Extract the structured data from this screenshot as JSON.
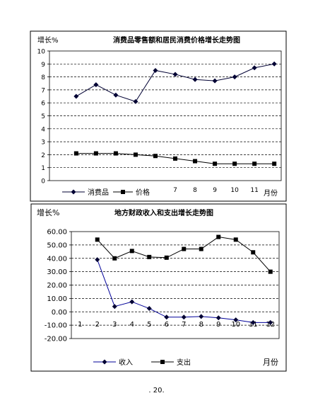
{
  "page_number": ". 20.",
  "chart_data": [
    {
      "type": "line",
      "title": "消费品零售额和居民消费价格增长走势图",
      "ylabel": "增长%",
      "xlabel": "月份",
      "ylim": [
        0,
        10
      ],
      "yticks": [
        0,
        1,
        2,
        3,
        4,
        5,
        6,
        7,
        8,
        9,
        10
      ],
      "x": [
        1,
        2,
        3,
        4,
        5,
        6,
        7,
        8,
        9,
        10,
        11,
        12
      ],
      "xtick_labels": [
        "",
        "",
        "",
        "",
        "",
        "",
        "7",
        "8",
        "9",
        "10",
        "11",
        ""
      ],
      "grid": "horizontal-dashed",
      "legend_position": "bottom",
      "series": [
        {
          "name": "消费品",
          "marker": "diamond",
          "values": [
            null,
            6.5,
            7.4,
            6.6,
            6.1,
            8.5,
            8.2,
            7.8,
            7.7,
            8.0,
            8.7,
            9.0
          ]
        },
        {
          "name": "价格",
          "marker": "square",
          "values": [
            null,
            2.1,
            2.1,
            2.1,
            2.0,
            1.9,
            1.7,
            1.5,
            1.3,
            1.3,
            1.3,
            1.3
          ]
        }
      ]
    },
    {
      "type": "line",
      "title": "地方财政收入和支出增长走势图",
      "ylabel": "增长%",
      "xlabel": "月份",
      "ylim": [
        -20,
        60
      ],
      "yticks": [
        -20,
        -10,
        0,
        10,
        20,
        30,
        40,
        50,
        60
      ],
      "ytick_labels": [
        "-20.00",
        "-10.00",
        "0.00",
        "10.00",
        "20.00",
        "30.00",
        "40.00",
        "50.00",
        "60.00"
      ],
      "x": [
        1,
        2,
        3,
        4,
        5,
        6,
        7,
        8,
        9,
        10,
        11,
        12
      ],
      "xtick_labels": [
        "1",
        "2",
        "3",
        "4",
        "5",
        "6",
        "7",
        "8",
        "9",
        "10",
        "11",
        "12"
      ],
      "grid": "horizontal-dashed",
      "legend_position": "bottom",
      "series": [
        {
          "name": "收入",
          "marker": "diamond",
          "values": [
            null,
            39,
            4,
            7.5,
            2.5,
            -4,
            -4,
            -3.5,
            -4.5,
            -6,
            -8,
            -8
          ]
        },
        {
          "name": "支出",
          "marker": "square",
          "values": [
            null,
            54,
            40,
            45.5,
            41,
            40.5,
            47,
            47,
            56,
            54,
            44.5,
            30
          ]
        }
      ]
    }
  ]
}
